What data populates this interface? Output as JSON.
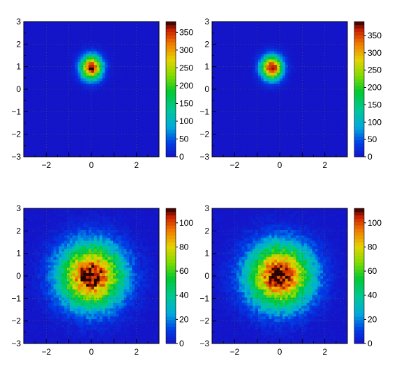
{
  "chart_data": [
    {
      "type": "heatmap",
      "x_range": [
        -3,
        3
      ],
      "y_range": [
        -3,
        3
      ],
      "x_ticks": [
        "−2",
        "0",
        "2"
      ],
      "y_ticks": [
        "3",
        "2",
        "1",
        "0",
        "−1",
        "−2",
        "−3"
      ],
      "z_range": [
        0,
        380
      ],
      "z_ticks": [
        "0",
        "50",
        "100",
        "150",
        "200",
        "250",
        "300",
        "350"
      ],
      "peak": {
        "x": 0.0,
        "y": 0.95,
        "sigma_x": 0.32,
        "sigma_y": 0.36,
        "max": 380
      },
      "grid": true,
      "colorbar": "right"
    },
    {
      "type": "heatmap",
      "x_range": [
        -3,
        3
      ],
      "y_range": [
        -3,
        3
      ],
      "x_ticks": [
        "−2",
        "0",
        "2"
      ],
      "y_ticks": [
        "3",
        "2",
        "1",
        "0",
        "−1",
        "−2",
        "−3"
      ],
      "z_range": [
        0,
        390
      ],
      "z_ticks": [
        "0",
        "50",
        "100",
        "150",
        "200",
        "250",
        "300",
        "350"
      ],
      "peak": {
        "x": -0.35,
        "y": 0.95,
        "sigma_x": 0.32,
        "sigma_y": 0.36,
        "max": 390
      },
      "grid": true,
      "colorbar": "right"
    },
    {
      "type": "heatmap",
      "x_range": [
        -3,
        3
      ],
      "y_range": [
        -3,
        3
      ],
      "x_ticks": [
        "−2",
        "0",
        "2"
      ],
      "y_ticks": [
        "3",
        "2",
        "1",
        "0",
        "−1",
        "−2",
        "−3"
      ],
      "z_range": [
        0,
        112
      ],
      "z_ticks": [
        "0",
        "20",
        "40",
        "60",
        "80",
        "100"
      ],
      "peak": {
        "x": 0.0,
        "y": 0.0,
        "sigma_x": 0.95,
        "sigma_y": 0.95,
        "max": 112
      },
      "grid": true,
      "colorbar": "right"
    },
    {
      "type": "heatmap",
      "x_range": [
        -3,
        3
      ],
      "y_range": [
        -3,
        3
      ],
      "x_ticks": [
        "−2",
        "0",
        "2"
      ],
      "y_ticks": [
        "3",
        "2",
        "1",
        "0",
        "−1",
        "−2",
        "−3"
      ],
      "z_range": [
        0,
        112
      ],
      "z_ticks": [
        "0",
        "20",
        "40",
        "60",
        "80",
        "100"
      ],
      "peak": {
        "x": 0.0,
        "y": 0.0,
        "sigma_x": 0.95,
        "sigma_y": 0.95,
        "max": 112
      },
      "grid": true,
      "colorbar": "right"
    }
  ]
}
